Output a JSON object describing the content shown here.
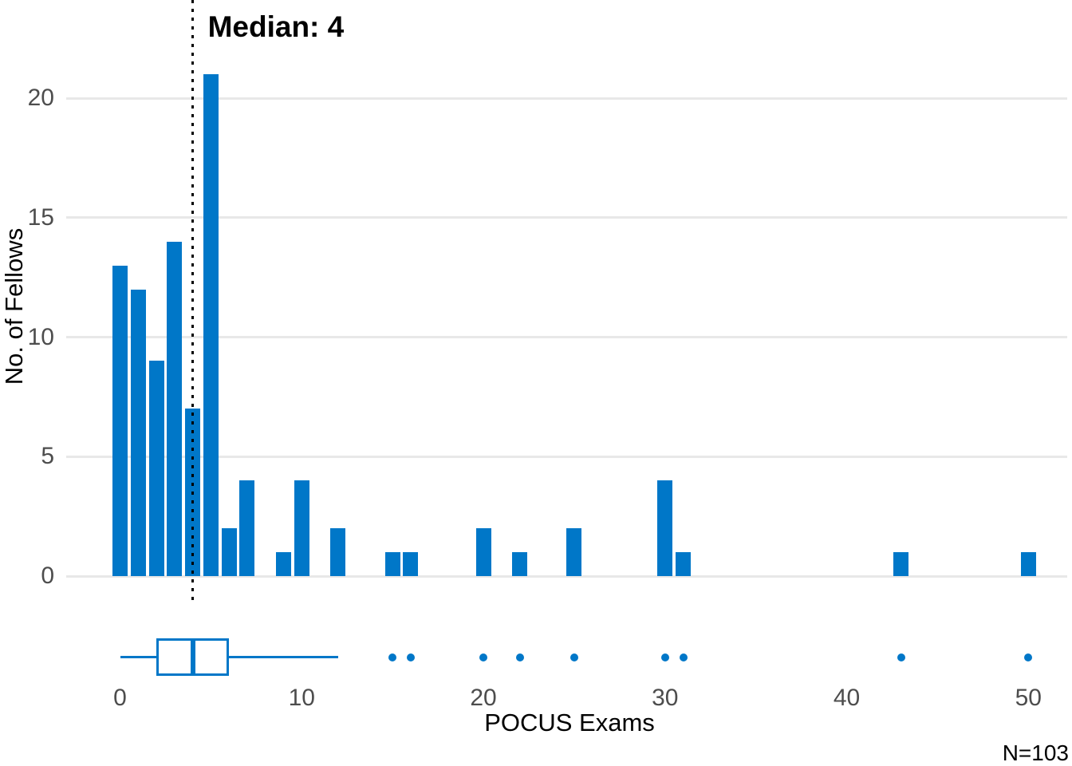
{
  "chart_data": [
    {
      "type": "bar",
      "subtype": "histogram",
      "title": "",
      "annotation": "Median: 4",
      "xlabel": "POCUS Exams",
      "ylabel": "No. of Fellows",
      "note": "N=103",
      "x": [
        0,
        1,
        2,
        3,
        4,
        5,
        6,
        7,
        9,
        10,
        12,
        15,
        16,
        20,
        22,
        25,
        30,
        31,
        43,
        50
      ],
      "values": [
        13,
        12,
        9,
        14,
        7,
        21,
        2,
        4,
        1,
        4,
        2,
        1,
        1,
        2,
        1,
        2,
        4,
        1,
        1,
        1
      ],
      "median_vline_x": 4,
      "x_ticks": [
        0,
        10,
        20,
        30,
        40,
        50
      ],
      "y_ticks": [
        0,
        5,
        10,
        15,
        20
      ],
      "xlim": [
        -3,
        52.4
      ],
      "ylim": [
        0,
        21
      ],
      "grid": "horizontal-major-only",
      "legend": "none",
      "colors": {
        "bar": "#0077C8",
        "grid": "#E8E8E8",
        "tick_label": "#4D4D4D",
        "text": "#000000",
        "background": "#FFFFFF",
        "median_line": "#000000"
      }
    },
    {
      "type": "boxplot",
      "orientation": "horizontal",
      "whisker_min": 0,
      "q1": 2,
      "median": 4,
      "q3": 6,
      "whisker_max": 12,
      "outliers": [
        15,
        16,
        20,
        22,
        25,
        30,
        31,
        43,
        50
      ],
      "color": "#0077C8"
    }
  ]
}
